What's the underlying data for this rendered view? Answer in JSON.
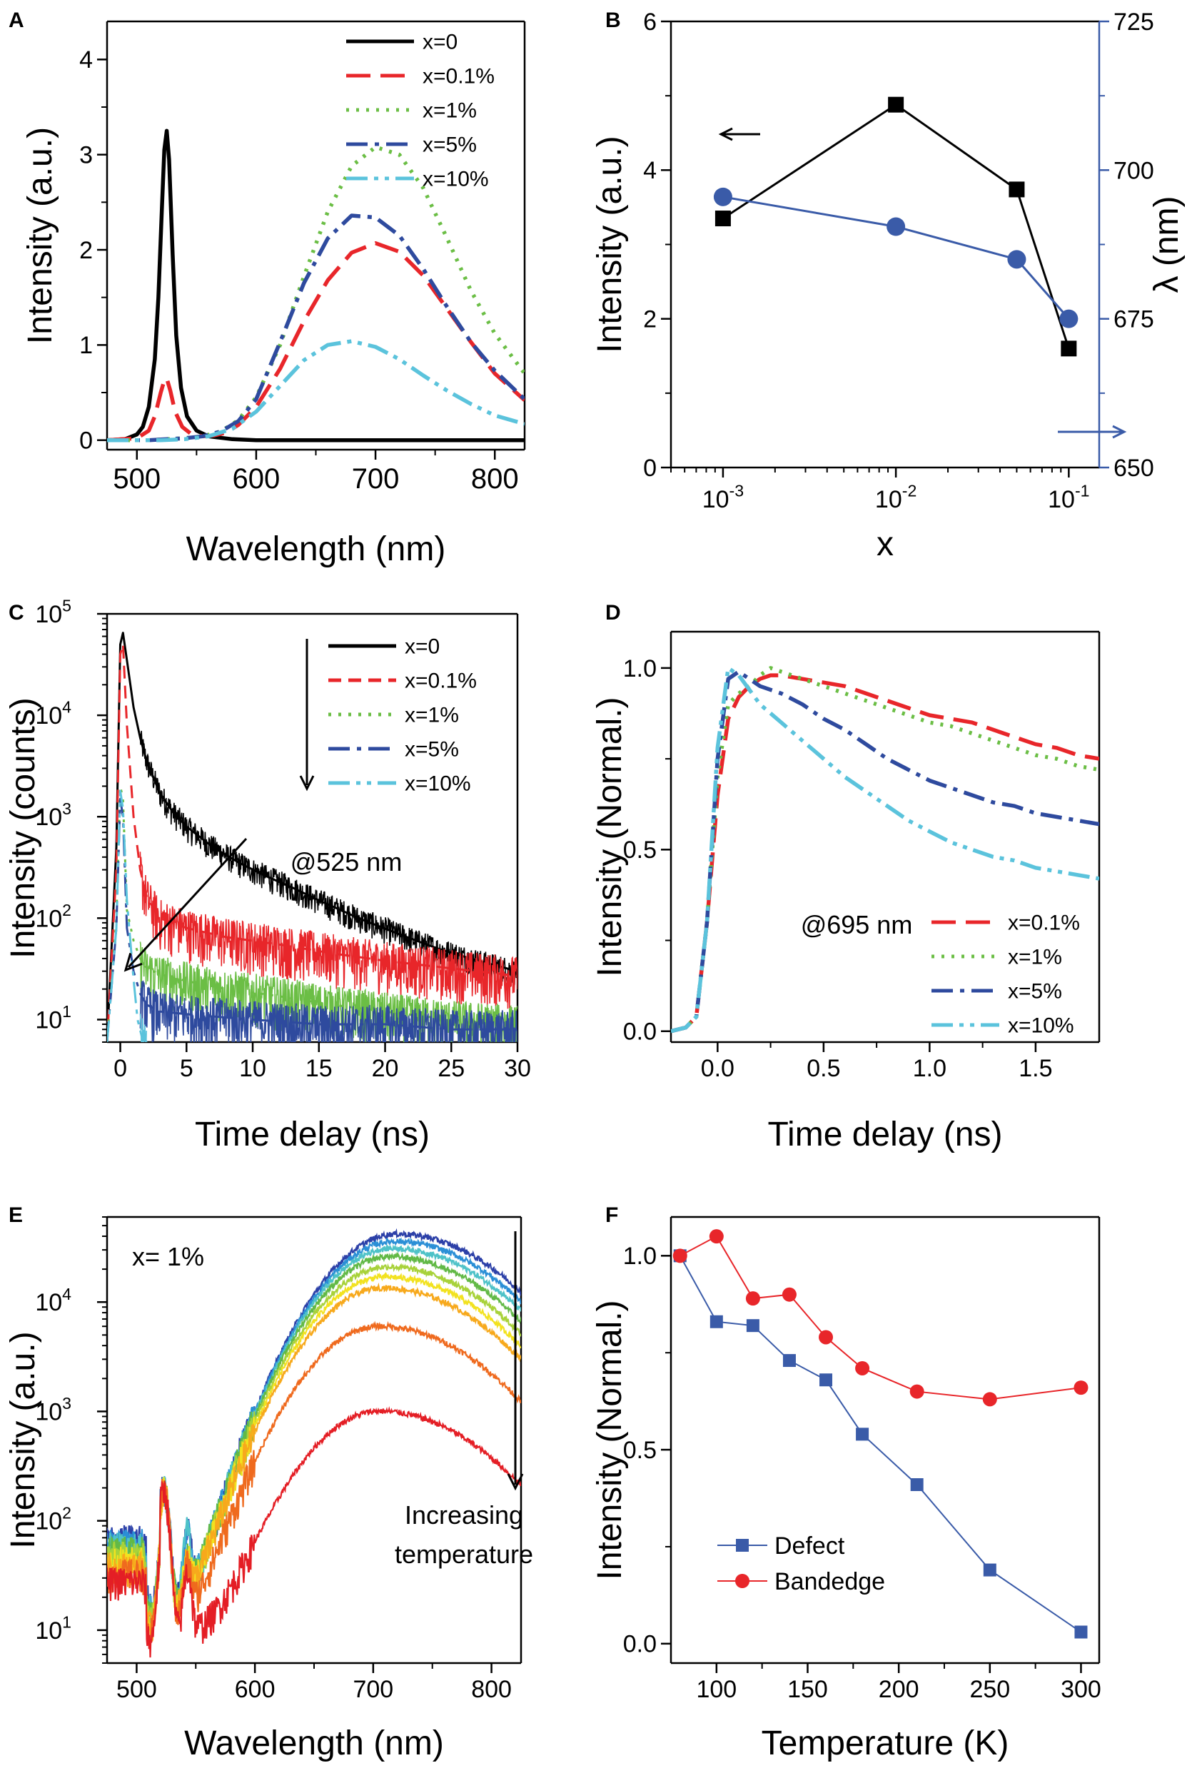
{
  "chart_data": [
    {
      "panel": "A",
      "type": "line",
      "xlabel": "Wavelength (nm)",
      "ylabel": "Intensity (a.u.)",
      "xlim": [
        475,
        825
      ],
      "ylim": [
        -0.1,
        4.4
      ],
      "xticks": [
        500,
        600,
        700,
        800
      ],
      "yticks": [
        0,
        1,
        2,
        3,
        4
      ],
      "legend_position": "top-right",
      "series": [
        {
          "name": "x=0",
          "color": "#000000",
          "dash": "solid",
          "x": [
            475,
            490,
            500,
            505,
            510,
            515,
            518,
            521,
            523,
            525,
            527,
            530,
            533,
            537,
            542,
            550,
            560,
            580,
            600,
            650,
            700,
            825
          ],
          "y": [
            0,
            0.01,
            0.06,
            0.14,
            0.35,
            0.85,
            1.5,
            2.45,
            3.05,
            3.25,
            2.95,
            1.95,
            1.1,
            0.55,
            0.25,
            0.1,
            0.04,
            0.01,
            0,
            0,
            0,
            0
          ]
        },
        {
          "name": "x=0.1%",
          "color": "#e8262a",
          "dash": "long",
          "x": [
            475,
            500,
            510,
            515,
            520,
            523,
            525,
            528,
            532,
            538,
            545,
            555,
            565,
            575,
            585,
            600,
            620,
            640,
            660,
            680,
            700,
            720,
            740,
            760,
            780,
            800,
            825
          ],
          "y": [
            0,
            0.02,
            0.1,
            0.25,
            0.5,
            0.63,
            0.65,
            0.52,
            0.3,
            0.14,
            0.07,
            0.04,
            0.05,
            0.08,
            0.16,
            0.35,
            0.75,
            1.25,
            1.68,
            1.97,
            2.07,
            1.98,
            1.73,
            1.38,
            1.03,
            0.7,
            0.42
          ]
        },
        {
          "name": "x=1%",
          "color": "#6bbe45",
          "dash": "dot",
          "x": [
            475,
            510,
            525,
            540,
            555,
            570,
            585,
            600,
            620,
            640,
            660,
            680,
            700,
            720,
            740,
            760,
            780,
            800,
            825
          ],
          "y": [
            0,
            0,
            0.01,
            0.02,
            0.04,
            0.09,
            0.21,
            0.45,
            1.0,
            1.72,
            2.4,
            2.88,
            3.08,
            3.0,
            2.65,
            2.12,
            1.57,
            1.12,
            0.7
          ]
        },
        {
          "name": "x=5%",
          "color": "#2e4a9e",
          "dash": "dashdot",
          "x": [
            475,
            510,
            525,
            540,
            555,
            570,
            585,
            600,
            620,
            640,
            660,
            680,
            700,
            720,
            740,
            760,
            780,
            800,
            825
          ],
          "y": [
            0,
            0,
            0.01,
            0.02,
            0.04,
            0.09,
            0.2,
            0.43,
            1.03,
            1.65,
            2.12,
            2.36,
            2.34,
            2.15,
            1.8,
            1.4,
            1.03,
            0.73,
            0.43
          ]
        },
        {
          "name": "x=10%",
          "color": "#5bc3dc",
          "dash": "dashdotdot",
          "x": [
            475,
            520,
            540,
            560,
            580,
            600,
            620,
            640,
            660,
            680,
            700,
            720,
            740,
            760,
            780,
            800,
            825
          ],
          "y": [
            0,
            0,
            0.01,
            0.04,
            0.12,
            0.3,
            0.57,
            0.84,
            1.0,
            1.04,
            0.98,
            0.85,
            0.68,
            0.52,
            0.38,
            0.26,
            0.17
          ]
        }
      ]
    },
    {
      "panel": "B",
      "type": "scatter",
      "xlabel": "x",
      "ylabel": "Intensity (a.u.)",
      "ylabel_right": "λ (nm)",
      "xscale": "log",
      "xlim": [
        0.0005,
        0.15
      ],
      "ylim": [
        0,
        6
      ],
      "ylim_right": [
        650,
        725
      ],
      "xtick_base": "10",
      "xtick_exponents": [
        "-3",
        "-2",
        "-1"
      ],
      "yticks": [
        0,
        2,
        4,
        6
      ],
      "yticks_right": [
        650,
        675,
        700,
        725
      ],
      "right_axis_color": "#3a5ba8",
      "series": [
        {
          "name": "Intensity",
          "axis": "left",
          "color": "#000000",
          "marker": "square",
          "x": [
            0.001,
            0.01,
            0.05,
            0.1
          ],
          "y": [
            3.35,
            4.88,
            3.74,
            1.6
          ]
        },
        {
          "name": "λ",
          "axis": "right",
          "color": "#3a5ba8",
          "marker": "circle",
          "x": [
            0.001,
            0.01,
            0.05,
            0.1
          ],
          "y": [
            695.5,
            690.5,
            685,
            675
          ]
        }
      ]
    },
    {
      "panel": "C",
      "type": "line",
      "xlabel": "Time delay (ns)",
      "ylabel": "Intensity (counts)",
      "yscale": "log",
      "xlim": [
        -1,
        30
      ],
      "ylim": [
        6,
        100000
      ],
      "xticks": [
        0,
        5,
        10,
        15,
        20,
        25,
        30
      ],
      "ytick_base": "10",
      "ytick_exponents": [
        "1",
        "2",
        "3",
        "4",
        "5"
      ],
      "annotation": "@525 nm",
      "legend_position": "top-right",
      "series": [
        {
          "name": "x=0",
          "color": "#000000",
          "dash": "solid",
          "x": [
            -1,
            -0.3,
            0,
            0.2,
            0.5,
            1,
            1.5,
            2,
            3,
            4,
            5,
            7,
            9,
            11,
            13,
            15,
            18,
            21,
            24,
            27,
            30
          ],
          "y": [
            6,
            500,
            50000,
            65000,
            35000,
            12000,
            6000,
            3500,
            1700,
            1100,
            800,
            500,
            350,
            260,
            200,
            150,
            100,
            70,
            50,
            38,
            30
          ]
        },
        {
          "name": "x=0.1%",
          "color": "#e8262a",
          "dash": "dash",
          "x": [
            -1,
            -0.3,
            0,
            0.2,
            0.5,
            1,
            1.5,
            2,
            3,
            5,
            8,
            12,
            16,
            20,
            25,
            30
          ],
          "y": [
            6,
            300,
            40000,
            50000,
            8000,
            1000,
            300,
            160,
            100,
            80,
            65,
            55,
            45,
            38,
            32,
            27
          ]
        },
        {
          "name": "x=1%",
          "color": "#6bbe45",
          "dash": "dot",
          "x": [
            -1,
            -0.3,
            0,
            0.2,
            0.5,
            1,
            1.5,
            2,
            3,
            5,
            8,
            12,
            16,
            20,
            25,
            30
          ],
          "y": [
            6,
            100,
            2000,
            1500,
            120,
            60,
            40,
            32,
            28,
            24,
            20,
            17,
            14,
            12,
            10,
            9
          ]
        },
        {
          "name": "x=5%",
          "color": "#2e4a9e",
          "dash": "dashdot",
          "x": [
            -1,
            -0.3,
            0,
            0.2,
            0.5,
            1,
            1.5,
            2,
            3,
            6,
            10,
            15,
            20,
            25,
            30
          ],
          "y": [
            6,
            80,
            1500,
            1000,
            80,
            30,
            18,
            14,
            12,
            11,
            10,
            9,
            9,
            8,
            8
          ]
        },
        {
          "name": "x=10%",
          "color": "#5bc3dc",
          "dash": "dashdotdot",
          "x": [
            -1,
            -0.3,
            0,
            0.2,
            0.5,
            1,
            1.3,
            1.6,
            2
          ],
          "y": [
            6,
            80,
            1800,
            1200,
            150,
            25,
            10,
            7,
            6
          ]
        }
      ]
    },
    {
      "panel": "D",
      "type": "line",
      "xlabel": "Time delay (ns)",
      "ylabel": "Intensity (Normal.)",
      "xlim": [
        -0.22,
        1.8
      ],
      "ylim": [
        -0.03,
        1.1
      ],
      "xticks": [
        "0.0",
        "0.5",
        "1.0",
        "1.5"
      ],
      "yticks": [
        "0.0",
        "0.5",
        "1.0"
      ],
      "annotation": "@695 nm",
      "legend_position": "bottom-right",
      "series": [
        {
          "name": "x=0.1%",
          "color": "#e8262a",
          "dash": "long",
          "x": [
            -0.22,
            -0.15,
            -0.1,
            -0.05,
            0,
            0.05,
            0.1,
            0.15,
            0.2,
            0.25,
            0.3,
            0.4,
            0.5,
            0.6,
            0.7,
            0.8,
            0.9,
            1.0,
            1.1,
            1.2,
            1.3,
            1.4,
            1.5,
            1.6,
            1.7,
            1.8
          ],
          "y": [
            0,
            0.01,
            0.04,
            0.3,
            0.65,
            0.86,
            0.92,
            0.95,
            0.97,
            0.98,
            0.98,
            0.97,
            0.96,
            0.95,
            0.93,
            0.91,
            0.89,
            0.87,
            0.86,
            0.85,
            0.83,
            0.81,
            0.79,
            0.78,
            0.76,
            0.75
          ]
        },
        {
          "name": "x=1%",
          "color": "#6bbe45",
          "dash": "dot",
          "x": [
            -0.22,
            -0.15,
            -0.1,
            -0.05,
            0,
            0.05,
            0.1,
            0.15,
            0.2,
            0.25,
            0.3,
            0.4,
            0.5,
            0.6,
            0.7,
            0.8,
            0.9,
            1.0,
            1.1,
            1.2,
            1.3,
            1.4,
            1.5,
            1.6,
            1.7,
            1.8
          ],
          "y": [
            0,
            0.01,
            0.04,
            0.3,
            0.7,
            0.9,
            0.93,
            0.95,
            0.98,
            1.0,
            0.99,
            0.97,
            0.95,
            0.93,
            0.91,
            0.89,
            0.87,
            0.85,
            0.84,
            0.82,
            0.8,
            0.78,
            0.76,
            0.75,
            0.73,
            0.72
          ]
        },
        {
          "name": "x=5%",
          "color": "#2e4a9e",
          "dash": "dashdot",
          "x": [
            -0.22,
            -0.15,
            -0.1,
            -0.05,
            0,
            0.05,
            0.1,
            0.15,
            0.2,
            0.3,
            0.4,
            0.5,
            0.6,
            0.7,
            0.8,
            0.9,
            1.0,
            1.1,
            1.2,
            1.3,
            1.4,
            1.5,
            1.6,
            1.7,
            1.8
          ],
          "y": [
            0,
            0.01,
            0.04,
            0.3,
            0.75,
            0.97,
            0.99,
            0.97,
            0.95,
            0.93,
            0.9,
            0.86,
            0.83,
            0.79,
            0.75,
            0.72,
            0.69,
            0.67,
            0.65,
            0.63,
            0.62,
            0.6,
            0.59,
            0.58,
            0.57
          ]
        },
        {
          "name": "x=10%",
          "color": "#5bc3dc",
          "dash": "dashdotdot",
          "x": [
            -0.22,
            -0.15,
            -0.1,
            -0.05,
            0,
            0.05,
            0.1,
            0.15,
            0.2,
            0.3,
            0.4,
            0.5,
            0.6,
            0.7,
            0.8,
            0.9,
            1.0,
            1.1,
            1.2,
            1.3,
            1.4,
            1.5,
            1.6,
            1.7,
            1.8
          ],
          "y": [
            0,
            0.01,
            0.04,
            0.3,
            0.78,
            1.0,
            0.98,
            0.94,
            0.9,
            0.85,
            0.8,
            0.75,
            0.7,
            0.66,
            0.62,
            0.58,
            0.55,
            0.52,
            0.5,
            0.48,
            0.47,
            0.45,
            0.44,
            0.43,
            0.42
          ]
        }
      ]
    },
    {
      "panel": "E",
      "type": "line",
      "xlabel": "Wavelength (nm)",
      "ylabel": "Intensity (a.u.)",
      "yscale": "log",
      "xlim": [
        475,
        825
      ],
      "ylim": [
        5,
        60000
      ],
      "xticks": [
        500,
        600,
        700,
        800
      ],
      "ytick_base": "10",
      "ytick_exponents": [
        "1",
        "2",
        "3",
        "4"
      ],
      "annotation_top": "x= 1%",
      "annotation_arrow_line1": "Increasing",
      "annotation_arrow_line2": "temperature",
      "series": [
        {
          "color": "#2c40a8",
          "peak": 42000,
          "peak_x": 720,
          "baseline": 60
        },
        {
          "color": "#2b8fd6",
          "peak": 36000,
          "peak_x": 718,
          "baseline": 55
        },
        {
          "color": "#4ec2c8",
          "peak": 31000,
          "peak_x": 716,
          "baseline": 50
        },
        {
          "color": "#62b946",
          "peak": 26000,
          "peak_x": 714,
          "baseline": 45
        },
        {
          "color": "#a8d23a",
          "peak": 21000,
          "peak_x": 712,
          "baseline": 40
        },
        {
          "color": "#f2e21f",
          "peak": 17000,
          "peak_x": 710,
          "baseline": 35
        },
        {
          "color": "#f7a91c",
          "peak": 13500,
          "peak_x": 708,
          "baseline": 30
        },
        {
          "color": "#ef6a1e",
          "peak": 6000,
          "peak_x": 705,
          "baseline": 25
        },
        {
          "color": "#e41e25",
          "peak": 1000,
          "peak_x": 705,
          "baseline": 20
        }
      ]
    },
    {
      "panel": "F",
      "type": "line",
      "xlabel": "Temperature (K)",
      "ylabel": "Intensity (Normal.)",
      "xlim": [
        75,
        310
      ],
      "ylim": [
        -0.05,
        1.1
      ],
      "xticks": [
        100,
        150,
        200,
        250,
        300
      ],
      "yticks": [
        "0.0",
        "0.5",
        "1.0"
      ],
      "legend_position": "bottom-left",
      "series": [
        {
          "name": "Defect",
          "color": "#3a5ba8",
          "marker": "square",
          "x": [
            80,
            100,
            120,
            140,
            160,
            180,
            210,
            250,
            300
          ],
          "y": [
            1.0,
            0.83,
            0.82,
            0.73,
            0.68,
            0.54,
            0.41,
            0.19,
            0.03
          ]
        },
        {
          "name": "Bandedge",
          "color": "#e8262a",
          "marker": "circle",
          "x": [
            80,
            100,
            120,
            140,
            160,
            180,
            210,
            250,
            300
          ],
          "y": [
            1.0,
            1.05,
            0.89,
            0.9,
            0.79,
            0.71,
            0.65,
            0.63,
            0.66
          ]
        }
      ]
    }
  ]
}
